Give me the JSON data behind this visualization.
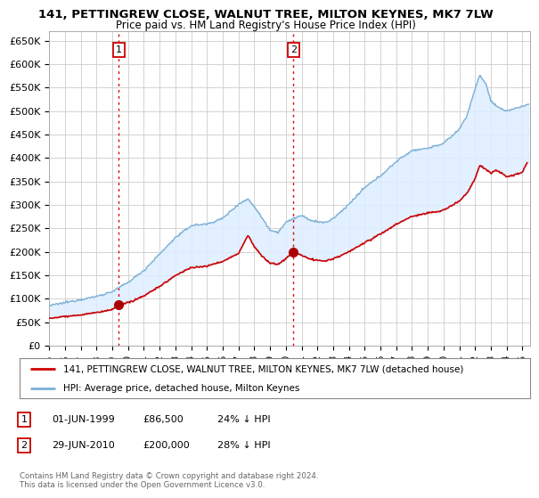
{
  "title_line1": "141, PETTINGREW CLOSE, WALNUT TREE, MILTON KEYNES, MK7 7LW",
  "title_line2": "Price paid vs. HM Land Registry's House Price Index (HPI)",
  "yticks": [
    0,
    50000,
    100000,
    150000,
    200000,
    250000,
    300000,
    350000,
    400000,
    450000,
    500000,
    550000,
    600000,
    650000
  ],
  "ylim": [
    0,
    670000
  ],
  "xlim_start": 1995.0,
  "xlim_end": 2025.5,
  "transaction1": {
    "date_num": 1999.42,
    "price": 86500,
    "label": "1"
  },
  "transaction2": {
    "date_num": 2010.49,
    "price": 200000,
    "label": "2"
  },
  "vline_color": "#dd0000",
  "marker_color": "#aa0000",
  "hpi_color": "#7bafd4",
  "hpi_fill_color": "#ddeeff",
  "price_color": "#cc0000",
  "legend_label_price": "141, PETTINGREW CLOSE, WALNUT TREE, MILTON KEYNES, MK7 7LW (detached house)",
  "legend_label_hpi": "HPI: Average price, detached house, Milton Keynes",
  "table_rows": [
    {
      "num": "1",
      "date": "01-JUN-1999",
      "price": "£86,500",
      "hpi": "24% ↓ HPI"
    },
    {
      "num": "2",
      "date": "29-JUN-2010",
      "price": "£200,000",
      "hpi": "28% ↓ HPI"
    }
  ],
  "footnote": "Contains HM Land Registry data © Crown copyright and database right 2024.\nThis data is licensed under the Open Government Licence v3.0.",
  "background_color": "#ffffff",
  "grid_color": "#cccccc",
  "xtick_years": [
    1995,
    1996,
    1997,
    1998,
    1999,
    2000,
    2001,
    2002,
    2003,
    2004,
    2005,
    2006,
    2007,
    2008,
    2009,
    2010,
    2011,
    2012,
    2013,
    2014,
    2015,
    2016,
    2017,
    2018,
    2019,
    2020,
    2021,
    2022,
    2023,
    2024,
    2025
  ]
}
